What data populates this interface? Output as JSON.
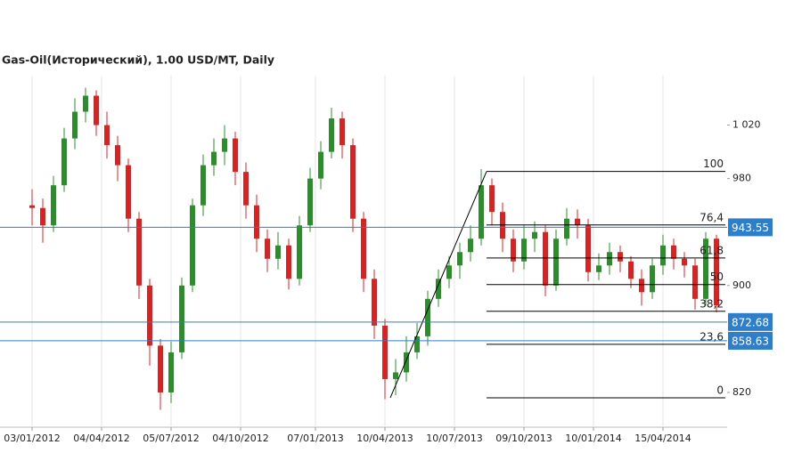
{
  "chart_data": {
    "type": "candlestick",
    "title": "Gas-Oil(Исторический), 1.00 USD/MT, Daily",
    "x": [
      0,
      2,
      4,
      6,
      8,
      10,
      12,
      14,
      16,
      18,
      20,
      22,
      24,
      26,
      28,
      30,
      32,
      34,
      36,
      38,
      40,
      42,
      44,
      46,
      48,
      50,
      52,
      54,
      56,
      58,
      60,
      62,
      64,
      66,
      68,
      70,
      72,
      74,
      76,
      78,
      80,
      82,
      84,
      86,
      88,
      90,
      92,
      94,
      96,
      98,
      100,
      102,
      104,
      106,
      108,
      110,
      112,
      114,
      116,
      118,
      120,
      122,
      124,
      126,
      128
    ],
    "open": [
      960,
      958,
      945,
      975,
      1010,
      1030,
      1042,
      1020,
      1005,
      990,
      950,
      900,
      855,
      820,
      850,
      900,
      960,
      990,
      1000,
      1010,
      985,
      960,
      935,
      920,
      930,
      905,
      945,
      980,
      1000,
      1025,
      1005,
      950,
      905,
      870,
      830,
      835,
      850,
      862,
      890,
      905,
      915,
      925,
      935,
      975,
      955,
      935,
      918,
      935,
      940,
      900,
      935,
      950,
      945,
      910,
      915,
      925,
      918,
      905,
      895,
      915,
      930,
      920,
      915,
      890,
      935
    ],
    "high": [
      972,
      965,
      982,
      1018,
      1040,
      1048,
      1046,
      1030,
      1012,
      995,
      955,
      905,
      860,
      858,
      906,
      965,
      998,
      1010,
      1020,
      1015,
      992,
      968,
      942,
      940,
      935,
      952,
      988,
      1008,
      1033,
      1030,
      1010,
      955,
      912,
      875,
      845,
      862,
      872,
      896,
      912,
      922,
      932,
      945,
      987,
      980,
      962,
      942,
      945,
      948,
      945,
      942,
      958,
      957,
      950,
      924,
      932,
      930,
      922,
      912,
      920,
      938,
      935,
      925,
      920,
      940,
      938
    ],
    "low": [
      945,
      932,
      940,
      970,
      1002,
      1022,
      1012,
      995,
      978,
      940,
      890,
      840,
      807,
      812,
      845,
      895,
      952,
      982,
      990,
      975,
      950,
      925,
      910,
      912,
      897,
      900,
      940,
      972,
      995,
      995,
      940,
      895,
      860,
      815,
      818,
      828,
      845,
      855,
      884,
      898,
      905,
      918,
      930,
      945,
      925,
      910,
      912,
      925,
      892,
      896,
      930,
      935,
      903,
      904,
      908,
      910,
      898,
      885,
      890,
      908,
      912,
      906,
      882,
      885,
      880
    ],
    "close": [
      958,
      945,
      975,
      1010,
      1030,
      1042,
      1020,
      1005,
      990,
      950,
      900,
      855,
      820,
      850,
      900,
      960,
      990,
      1000,
      1010,
      985,
      960,
      935,
      920,
      930,
      905,
      945,
      980,
      1000,
      1025,
      1005,
      950,
      905,
      870,
      830,
      835,
      850,
      862,
      890,
      905,
      915,
      925,
      935,
      975,
      955,
      935,
      918,
      935,
      940,
      900,
      935,
      950,
      945,
      910,
      915,
      925,
      918,
      905,
      895,
      915,
      930,
      920,
      915,
      890,
      935,
      885
    ],
    "up_color": "#2e8b2e",
    "down_color": "#d42424",
    "xlim": [
      -6,
      130
    ],
    "xticks": [
      {
        "value": 0,
        "label": "03/01/2012"
      },
      {
        "value": 13,
        "label": "04/04/2012"
      },
      {
        "value": 26,
        "label": "05/07/2012"
      },
      {
        "value": 39,
        "label": "04/10/2012"
      },
      {
        "value": 53,
        "label": "07/01/2013"
      },
      {
        "value": 66,
        "label": "10/04/2013"
      },
      {
        "value": 79,
        "label": "10/07/2013"
      },
      {
        "value": 92,
        "label": "09/10/2013"
      },
      {
        "value": 105,
        "label": "10/01/2014"
      },
      {
        "value": 118,
        "label": "15/04/2014"
      }
    ],
    "ylim": [
      794,
      1057
    ],
    "yticks": [
      820,
      900,
      980,
      {
        "value": 1020,
        "label": "1 020"
      }
    ],
    "hlines": [
      943.55,
      872.68,
      858.63
    ],
    "hline_color": "#2f7ec9",
    "fib_start": {
      "x": 67,
      "y": 816
    },
    "fib_end": {
      "x": 85,
      "y": 985.3
    },
    "fib_levels": [
      {
        "label": "100",
        "value": 985.3
      },
      {
        "label": "76,4",
        "value": 945.3
      },
      {
        "label": "61,8",
        "value": 920.6
      },
      {
        "label": "50",
        "value": 900.7
      },
      {
        "label": "38,2",
        "value": 880.7
      },
      {
        "label": "23,6",
        "value": 856
      },
      {
        "label": "0",
        "value": 816
      }
    ]
  }
}
